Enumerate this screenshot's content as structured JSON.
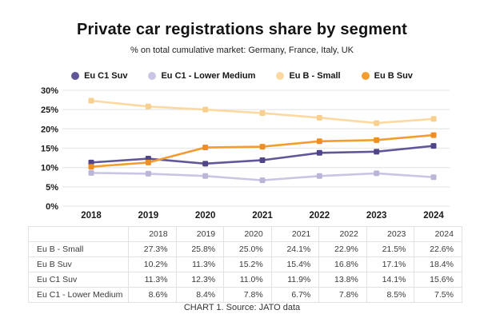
{
  "header": {
    "title": "Private car registrations share by segment",
    "subtitle": "% on total cumulative market: Germany, France, Italy, UK"
  },
  "footer": {
    "caption": "CHART 1. Source: JATO data"
  },
  "colors": {
    "purple_line": "#615798",
    "purple_marker": "#4f4588",
    "lavender_line": "#c9c6e3",
    "lavender_marker": "#bab6d8",
    "peach_line": "#fcd9a0",
    "peach_marker": "#f7cf8e",
    "orange_line": "#f39c2f",
    "orange_marker": "#ee8f26",
    "gridline": "#e9e9e9",
    "table_border": "#e2e2e2"
  },
  "chart_data": {
    "type": "line",
    "title": "Private car registrations share by segment",
    "xlabel": "",
    "ylabel": "",
    "x": [
      "2018",
      "2019",
      "2020",
      "2021",
      "2022",
      "2023",
      "2024"
    ],
    "ylim": [
      0,
      30
    ],
    "ytick_step": 5,
    "ytick_labels": [
      "0%",
      "5%",
      "10%",
      "15%",
      "20%",
      "25%",
      "30%"
    ],
    "grid": "horizontal",
    "legend_position": "top",
    "marker": "square",
    "series": [
      {
        "name": "Eu C1 Suv",
        "line_color": "#615798",
        "marker_color": "#4f4588",
        "values": [
          11.3,
          12.3,
          11.0,
          11.9,
          13.8,
          14.1,
          15.6
        ]
      },
      {
        "name": "Eu C1 - Lower Medium",
        "line_color": "#c9c6e3",
        "marker_color": "#bab6d8",
        "values": [
          8.6,
          8.4,
          7.8,
          6.7,
          7.8,
          8.5,
          7.5
        ]
      },
      {
        "name": "Eu B - Small",
        "line_color": "#fcd9a0",
        "marker_color": "#f7cf8e",
        "values": [
          27.3,
          25.8,
          25.0,
          24.1,
          22.9,
          21.5,
          22.6
        ]
      },
      {
        "name": "Eu B Suv",
        "line_color": "#f39c2f",
        "marker_color": "#ee8f26",
        "values": [
          10.2,
          11.3,
          15.2,
          15.4,
          16.8,
          17.1,
          18.4
        ]
      }
    ],
    "draw_order": [
      2,
      1,
      0,
      3
    ]
  },
  "table": {
    "columns": [
      "",
      "2018",
      "2019",
      "2020",
      "2021",
      "2022",
      "2023",
      "2024"
    ],
    "rows": [
      {
        "label": "Eu B - Small",
        "values": [
          "27.3%",
          "25.8%",
          "25.0%",
          "24.1%",
          "22.9%",
          "21.5%",
          "22.6%"
        ]
      },
      {
        "label": "Eu B Suv",
        "values": [
          "10.2%",
          "11.3%",
          "15.2%",
          "15.4%",
          "16.8%",
          "17.1%",
          "18.4%"
        ]
      },
      {
        "label": "Eu C1 Suv",
        "values": [
          "11.3%",
          "12.3%",
          "11.0%",
          "11.9%",
          "13.8%",
          "14.1%",
          "15.6%"
        ]
      },
      {
        "label": "Eu C1 - Lower Medium",
        "values": [
          "8.6%",
          "8.4%",
          "7.8%",
          "6.7%",
          "7.8%",
          "8.5%",
          "7.5%"
        ]
      }
    ]
  }
}
